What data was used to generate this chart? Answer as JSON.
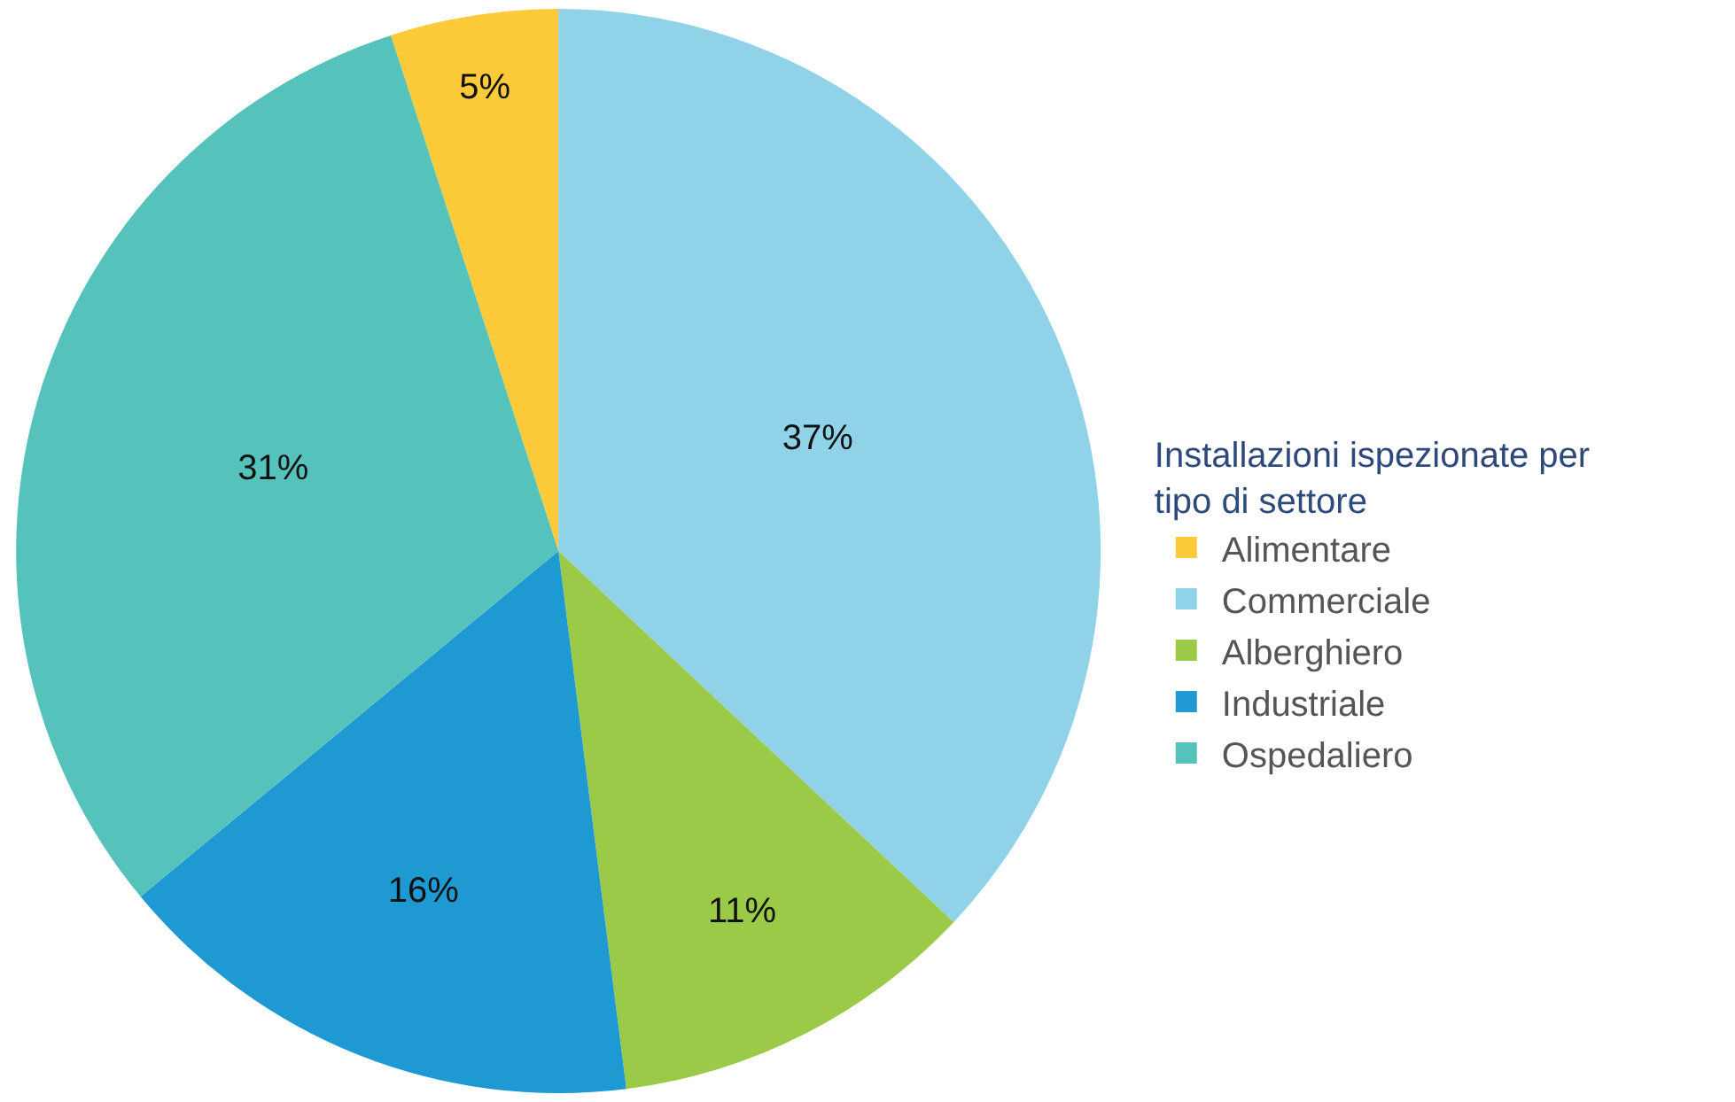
{
  "chart_data": {
    "type": "pie",
    "legend_title": "Installazioni ispezionate per\ntipo di settore",
    "categories": [
      "Alimentare",
      "Commerciale",
      "Alberghiero",
      "Industriale",
      "Ospedaliero"
    ],
    "values": [
      5,
      37,
      11,
      16,
      31
    ],
    "value_labels": [
      "5%",
      "37%",
      "11%",
      "16%",
      "31%"
    ],
    "colors": [
      "#fdca3a",
      "#90d3e8",
      "#9aca48",
      "#1e99d2",
      "#56c2bc"
    ],
    "legend": "right"
  }
}
